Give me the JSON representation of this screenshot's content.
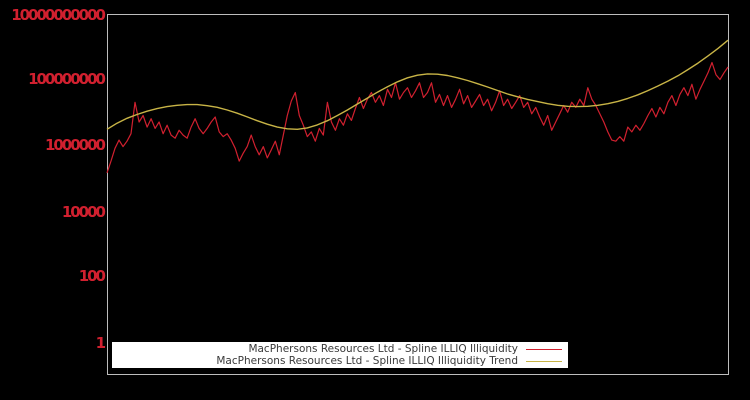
{
  "background_color": "#000000",
  "chart_data": {
    "type": "line",
    "title": "",
    "xlabel": "",
    "ylabel": "",
    "grid": false,
    "yscale": "log",
    "ylim": [
      0.1,
      10000000000
    ],
    "yticks": [
      10000000000,
      100000000,
      1000000,
      10000,
      100,
      1
    ],
    "ytick_labels": [
      "10000000000",
      "100000000",
      "1000000",
      "10000",
      "100",
      "1"
    ],
    "tick_label_color": "#d1202f",
    "axis_color": "#bdbdbd",
    "legend_position": "lower center",
    "legend_background": "#ffffff",
    "legend_text_color": "#3a3a3a",
    "series": [
      {
        "name": "MacPhersons Resources Ltd - Spline ILLIQ Illiquidity",
        "color": "#d1202f",
        "width": 1.2,
        "values": [
          140000.0,
          320000.0,
          790000.0,
          1400000.0,
          890000.0,
          1300000.0,
          2200000.0,
          20000000.0,
          5000000.0,
          7900000.0,
          3500000.0,
          6300000.0,
          3200000.0,
          5000000.0,
          2200000.0,
          4000000.0,
          2000000.0,
          1600000.0,
          2800000.0,
          2000000.0,
          1600000.0,
          3500000.0,
          6300000.0,
          3200000.0,
          2200000.0,
          3200000.0,
          5000000.0,
          7100000.0,
          2500000.0,
          1800000.0,
          2200000.0,
          1400000.0,
          790000.0,
          320000.0,
          560000.0,
          890000.0,
          2000000.0,
          890000.0,
          500000.0,
          890000.0,
          400000.0,
          710000.0,
          1300000.0,
          500000.0,
          2000000.0,
          7900000.0,
          22000000.0,
          40000000.0,
          7900000.0,
          4000000.0,
          1800000.0,
          2500000.0,
          1300000.0,
          3200000.0,
          2000000.0,
          20000000.0,
          5000000.0,
          2800000.0,
          6300000.0,
          4000000.0,
          8900000.0,
          5600000.0,
          13000000.0,
          28000000.0,
          13000000.0,
          25000000.0,
          40000000.0,
          20000000.0,
          32000000.0,
          16000000.0,
          50000000.0,
          28000000.0,
          79000000.0,
          25000000.0,
          40000000.0,
          56000000.0,
          28000000.0,
          45000000.0,
          79000000.0,
          28000000.0,
          40000000.0,
          79000000.0,
          20000000.0,
          35000000.0,
          16000000.0,
          32000000.0,
          14000000.0,
          25000000.0,
          50000000.0,
          18000000.0,
          32000000.0,
          14000000.0,
          22000000.0,
          35000000.0,
          16000000.0,
          25000000.0,
          11000000.0,
          20000000.0,
          45000000.0,
          16000000.0,
          25000000.0,
          13000000.0,
          20000000.0,
          32000000.0,
          14000000.0,
          20000000.0,
          8900000.0,
          14000000.0,
          7100000.0,
          4000000.0,
          7900000.0,
          2800000.0,
          5000000.0,
          8900000.0,
          16000000.0,
          10000000.0,
          20000000.0,
          14000000.0,
          25000000.0,
          16000000.0,
          56000000.0,
          25000000.0,
          16000000.0,
          8900000.0,
          5000000.0,
          2500000.0,
          1400000.0,
          1300000.0,
          1800000.0,
          1300000.0,
          3500000.0,
          2500000.0,
          4000000.0,
          2800000.0,
          4500000.0,
          7900000.0,
          13000000.0,
          7100000.0,
          14000000.0,
          8900000.0,
          20000000.0,
          32000000.0,
          16000000.0,
          35000000.0,
          56000000.0,
          32000000.0,
          71000000.0,
          25000000.0,
          50000000.0,
          89000000.0,
          160000000.0,
          330000000.0,
          140000000.0,
          100000000.0,
          160000000.0,
          240000000.0
        ]
      },
      {
        "name": "MacPhersons Resources Ltd - Spline ILLIQ Illiquidity Trend",
        "color": "#c8b446",
        "width": 1.4,
        "values": [
          3000000.0,
          4600000.0,
          6500000.0,
          8500000.0,
          10700000.0,
          12900000.0,
          14800000.0,
          16200000.0,
          17000000.0,
          17000000.0,
          15800000.0,
          14100000.0,
          11700000.0,
          9300000.0,
          7200000.0,
          5500000.0,
          4300000.0,
          3500000.0,
          3100000.0,
          3000000.0,
          3300000.0,
          4100000.0,
          5500000.0,
          7900000.0,
          11700000.0,
          17800000.0,
          26900000.0,
          40700000.0,
          60000000.0,
          85000000.0,
          112000000.0,
          135000000.0,
          148000000.0,
          145000000.0,
          132000000.0,
          112000000.0,
          93000000.0,
          74000000.0,
          59000000.0,
          46000000.0,
          36000000.0,
          29500000.0,
          24500000.0,
          21000000.0,
          18200000.0,
          16200000.0,
          15100000.0,
          14800000.0,
          15100000.0,
          16200000.0,
          18200000.0,
          21400000.0,
          26300000.0,
          33900000.0,
          45700000.0,
          63000000.0,
          89000000.0,
          129000000.0,
          200000000.0,
          316000000.0,
          525000000.0,
          890000000.0,
          1580000000.0
        ]
      }
    ]
  }
}
